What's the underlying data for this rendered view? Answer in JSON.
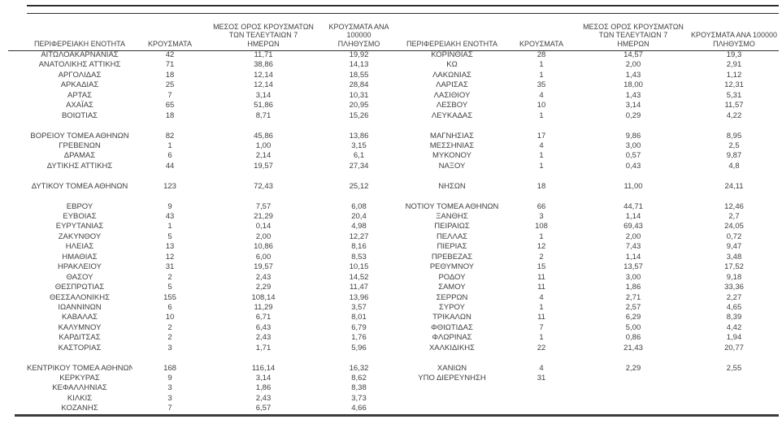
{
  "page": {
    "background_color": "#ffffff",
    "text_color": "#3f3f3f",
    "rule_color": "#2e2e2e"
  },
  "headers": {
    "region": "ΠΕΡΙΦΕΡΕΙΑΚΗ ΕΝΟΤΗΤΑ",
    "cases": "ΚΡΟΥΣΜΑΤΑ",
    "avg7": "ΜΕΣΟΣ ΟΡΟΣ ΚΡΟΥΣΜΑΤΩΝ\nΤΩΝ ΤΕΛΕΥΤΑΙΩΝ 7\nΗΜΕΡΩΝ",
    "per100k": "ΚΡΟΥΣΜΑΤΑ ΑΝΑ 100000\nΠΛΗΘΥΣΜΟ"
  },
  "left_table": {
    "rows": [
      {
        "name": "ΑΙΤΩΛΟΑΚΑΡΝΑΝΙΑΣ",
        "cases": "42",
        "avg7": "11,71",
        "per100k": "19,92"
      },
      {
        "name": "ΑΝΑΤΟΛΙΚΗΣ ΑΤΤΙΚΗΣ",
        "cases": "71",
        "avg7": "38,86",
        "per100k": "14,13"
      },
      {
        "name": "ΑΡΓΟΛΙΔΑΣ",
        "cases": "18",
        "avg7": "12,14",
        "per100k": "18,55"
      },
      {
        "name": "ΑΡΚΑΔΙΑΣ",
        "cases": "25",
        "avg7": "12,14",
        "per100k": "28,84"
      },
      {
        "name": "ΑΡΤΑΣ",
        "cases": "7",
        "avg7": "3,14",
        "per100k": "10,31"
      },
      {
        "name": "ΑΧΑΪΑΣ",
        "cases": "65",
        "avg7": "51,86",
        "per100k": "20,95"
      },
      {
        "name": "ΒΟΙΩΤΙΑΣ",
        "cases": "18",
        "avg7": "8,71",
        "per100k": "15,26"
      },
      {
        "name": "",
        "cases": "",
        "avg7": "",
        "per100k": ""
      },
      {
        "name": "ΒΟΡΕΙΟΥ ΤΟΜΕΑ ΑΘΗΝΩΝ",
        "cases": "82",
        "avg7": "45,86",
        "per100k": "13,86"
      },
      {
        "name": "ΓΡΕΒΕΝΩΝ",
        "cases": "1",
        "avg7": "1,00",
        "per100k": "3,15"
      },
      {
        "name": "ΔΡΑΜΑΣ",
        "cases": "6",
        "avg7": "2,14",
        "per100k": "6,1"
      },
      {
        "name": "ΔΥΤΙΚΗΣ ΑΤΤΙΚΗΣ",
        "cases": "44",
        "avg7": "19,57",
        "per100k": "27,34"
      },
      {
        "name": "",
        "cases": "",
        "avg7": "",
        "per100k": ""
      },
      {
        "name": "ΔΥΤΙΚΟΥ ΤΟΜΕΑ ΑΘΗΝΩΝ",
        "cases": "123",
        "avg7": "72,43",
        "per100k": "25,12"
      },
      {
        "name": "",
        "cases": "",
        "avg7": "",
        "per100k": ""
      },
      {
        "name": "ΕΒΡΟΥ",
        "cases": "9",
        "avg7": "7,57",
        "per100k": "6,08"
      },
      {
        "name": "ΕΥΒΟΙΑΣ",
        "cases": "43",
        "avg7": "21,29",
        "per100k": "20,4"
      },
      {
        "name": "ΕΥΡΥΤΑΝΙΑΣ",
        "cases": "1",
        "avg7": "0,14",
        "per100k": "4,98"
      },
      {
        "name": "ΖΑΚΥΝΘΟΥ",
        "cases": "5",
        "avg7": "2,00",
        "per100k": "12,27"
      },
      {
        "name": "ΗΛΕΙΑΣ",
        "cases": "13",
        "avg7": "10,86",
        "per100k": "8,16"
      },
      {
        "name": "ΗΜΑΘΙΑΣ",
        "cases": "12",
        "avg7": "6,00",
        "per100k": "8,53"
      },
      {
        "name": "ΗΡΑΚΛΕΙΟΥ",
        "cases": "31",
        "avg7": "19,57",
        "per100k": "10,15"
      },
      {
        "name": "ΘΑΣΟΥ",
        "cases": "2",
        "avg7": "2,43",
        "per100k": "14,52"
      },
      {
        "name": "ΘΕΣΠΡΩΤΙΑΣ",
        "cases": "5",
        "avg7": "2,29",
        "per100k": "11,47"
      },
      {
        "name": "ΘΕΣΣΑΛΟΝΙΚΗΣ",
        "cases": "155",
        "avg7": "108,14",
        "per100k": "13,96"
      },
      {
        "name": "ΙΩΑΝΝΙΝΩΝ",
        "cases": "6",
        "avg7": "11,29",
        "per100k": "3,57"
      },
      {
        "name": "ΚΑΒΑΛΑΣ",
        "cases": "10",
        "avg7": "6,71",
        "per100k": "8,01"
      },
      {
        "name": "ΚΑΛΥΜΝΟΥ",
        "cases": "2",
        "avg7": "6,43",
        "per100k": "6,79"
      },
      {
        "name": "ΚΑΡΔΙΤΣΑΣ",
        "cases": "2",
        "avg7": "2,43",
        "per100k": "1,76"
      },
      {
        "name": "ΚΑΣΤΟΡΙΑΣ",
        "cases": "3",
        "avg7": "1,71",
        "per100k": "5,96"
      },
      {
        "name": "",
        "cases": "",
        "avg7": "",
        "per100k": ""
      },
      {
        "name": "ΚΕΝΤΡΙΚΟΥ ΤΟΜΕΑ ΑΘΗΝΩΝ",
        "cases": "168",
        "avg7": "116,14",
        "per100k": "16,32"
      },
      {
        "name": "ΚΕΡΚΥΡΑΣ",
        "cases": "9",
        "avg7": "3,14",
        "per100k": "8,62"
      },
      {
        "name": "ΚΕΦΑΛΛΗΝΙΑΣ",
        "cases": "3",
        "avg7": "1,86",
        "per100k": "8,38"
      },
      {
        "name": "ΚΙΛΚΙΣ",
        "cases": "3",
        "avg7": "2,43",
        "per100k": "3,73"
      },
      {
        "name": "ΚΟΖΑΝΗΣ",
        "cases": "7",
        "avg7": "6,57",
        "per100k": "4,66"
      }
    ]
  },
  "right_table": {
    "rows": [
      {
        "name": "ΚΟΡΙΝΘΙΑΣ",
        "cases": "28",
        "avg7": "14,57",
        "per100k": "19,3"
      },
      {
        "name": "ΚΩ",
        "cases": "1",
        "avg7": "2,00",
        "per100k": "2,91"
      },
      {
        "name": "ΛΑΚΩΝΙΑΣ",
        "cases": "1",
        "avg7": "1,43",
        "per100k": "1,12"
      },
      {
        "name": "ΛΑΡΙΣΑΣ",
        "cases": "35",
        "avg7": "18,00",
        "per100k": "12,31"
      },
      {
        "name": "ΛΑΣΙΘΙΟΥ",
        "cases": "4",
        "avg7": "1,43",
        "per100k": "5,31"
      },
      {
        "name": "ΛΕΣΒΟΥ",
        "cases": "10",
        "avg7": "3,14",
        "per100k": "11,57"
      },
      {
        "name": "ΛΕΥΚΑΔΑΣ",
        "cases": "1",
        "avg7": "0,29",
        "per100k": "4,22"
      },
      {
        "name": "",
        "cases": "",
        "avg7": "",
        "per100k": ""
      },
      {
        "name": "ΜΑΓΝΗΣΙΑΣ",
        "cases": "17",
        "avg7": "9,86",
        "per100k": "8,95"
      },
      {
        "name": "ΜΕΣΣΗΝΙΑΣ",
        "cases": "4",
        "avg7": "3,00",
        "per100k": "2,5"
      },
      {
        "name": "ΜΥΚΟΝΟΥ",
        "cases": "1",
        "avg7": "0,57",
        "per100k": "9,87"
      },
      {
        "name": "ΝΑΞΟΥ",
        "cases": "1",
        "avg7": "0,43",
        "per100k": "4,8"
      },
      {
        "name": "",
        "cases": "",
        "avg7": "",
        "per100k": ""
      },
      {
        "name": "ΝΗΣΩΝ",
        "cases": "18",
        "avg7": "11,00",
        "per100k": "24,11"
      },
      {
        "name": "",
        "cases": "",
        "avg7": "",
        "per100k": ""
      },
      {
        "name": "ΝΟΤΙΟΥ ΤΟΜΕΑ ΑΘΗΝΩΝ",
        "cases": "66",
        "avg7": "44,71",
        "per100k": "12,46"
      },
      {
        "name": "ΞΑΝΘΗΣ",
        "cases": "3",
        "avg7": "1,14",
        "per100k": "2,7"
      },
      {
        "name": "ΠΕΙΡΑΙΩΣ",
        "cases": "108",
        "avg7": "69,43",
        "per100k": "24,05"
      },
      {
        "name": "ΠΕΛΛΑΣ",
        "cases": "1",
        "avg7": "2,00",
        "per100k": "0,72"
      },
      {
        "name": "ΠΙΕΡΙΑΣ",
        "cases": "12",
        "avg7": "7,43",
        "per100k": "9,47"
      },
      {
        "name": "ΠΡΕΒΕΖΑΣ",
        "cases": "2",
        "avg7": "1,14",
        "per100k": "3,48"
      },
      {
        "name": "ΡΕΘΥΜΝΟΥ",
        "cases": "15",
        "avg7": "13,57",
        "per100k": "17,52"
      },
      {
        "name": "ΡΟΔΟΥ",
        "cases": "11",
        "avg7": "3,00",
        "per100k": "9,18"
      },
      {
        "name": "ΣΑΜΟΥ",
        "cases": "11",
        "avg7": "1,86",
        "per100k": "33,36"
      },
      {
        "name": "ΣΕΡΡΩΝ",
        "cases": "4",
        "avg7": "2,71",
        "per100k": "2,27"
      },
      {
        "name": "ΣΥΡΟΥ",
        "cases": "1",
        "avg7": "2,57",
        "per100k": "4,65"
      },
      {
        "name": "ΤΡΙΚΑΛΩΝ",
        "cases": "11",
        "avg7": "6,29",
        "per100k": "8,39"
      },
      {
        "name": "ΦΘΙΩΤΙΔΑΣ",
        "cases": "7",
        "avg7": "5,00",
        "per100k": "4,42"
      },
      {
        "name": "ΦΛΩΡΙΝΑΣ",
        "cases": "1",
        "avg7": "0,86",
        "per100k": "1,94"
      },
      {
        "name": "ΧΑΛΚΙΔΙΚΗΣ",
        "cases": "22",
        "avg7": "21,43",
        "per100k": "20,77"
      },
      {
        "name": "",
        "cases": "",
        "avg7": "",
        "per100k": ""
      },
      {
        "name": "ΧΑΝΙΩΝ",
        "cases": "4",
        "avg7": "2,29",
        "per100k": "2,55"
      },
      {
        "name": "ΥΠΟ ΔΙΕΡΕΥΝΗΣΗ",
        "cases": "31",
        "avg7": "",
        "per100k": ""
      },
      {
        "name": "",
        "cases": "",
        "avg7": "",
        "per100k": ""
      },
      {
        "name": "",
        "cases": "",
        "avg7": "",
        "per100k": ""
      },
      {
        "name": "",
        "cases": "",
        "avg7": "",
        "per100k": ""
      }
    ]
  }
}
